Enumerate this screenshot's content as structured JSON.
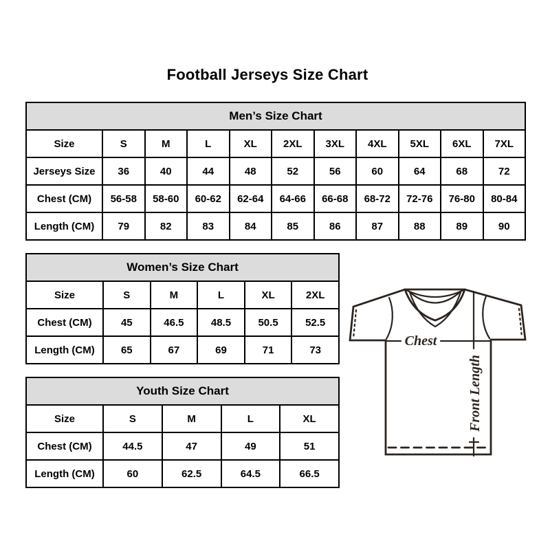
{
  "page": {
    "title": "Football Jerseys Size Chart"
  },
  "tables": [
    {
      "title": "Men’s Size Chart",
      "rows": [
        [
          "Size",
          "S",
          "M",
          "L",
          "XL",
          "2XL",
          "3XL",
          "4XL",
          "5XL",
          "6XL",
          "7XL"
        ],
        [
          "Jerseys Size",
          "36",
          "40",
          "44",
          "48",
          "52",
          "56",
          "60",
          "64",
          "68",
          "72"
        ],
        [
          "Chest (CM)",
          "56-58",
          "58-60",
          "60-62",
          "62-64",
          "64-66",
          "66-68",
          "68-72",
          "72-76",
          "76-80",
          "80-84"
        ],
        [
          "Length (CM)",
          "79",
          "82",
          "83",
          "84",
          "85",
          "86",
          "87",
          "88",
          "89",
          "90"
        ]
      ]
    },
    {
      "title": "Women’s Size Chart",
      "rows": [
        [
          "Size",
          "S",
          "M",
          "L",
          "XL",
          "2XL"
        ],
        [
          "Chest (CM)",
          "45",
          "46.5",
          "48.5",
          "50.5",
          "52.5"
        ],
        [
          "Length (CM)",
          "65",
          "67",
          "69",
          "71",
          "73"
        ]
      ]
    },
    {
      "title": "Youth Size Chart",
      "rows": [
        [
          "Size",
          "S",
          "M",
          "L",
          "XL"
        ],
        [
          "Chest (CM)",
          "44.5",
          "47",
          "49",
          "51"
        ],
        [
          "Length (CM)",
          "60",
          "62.5",
          "64.5",
          "66.5"
        ]
      ]
    }
  ],
  "diagram": {
    "chest_label": "Chest",
    "front_length_label": "Front Length"
  },
  "colors": {
    "table_header_bg": "#dcdcdc",
    "table_border": "#000000",
    "text": "#000000",
    "line_art": "#2b241f"
  }
}
